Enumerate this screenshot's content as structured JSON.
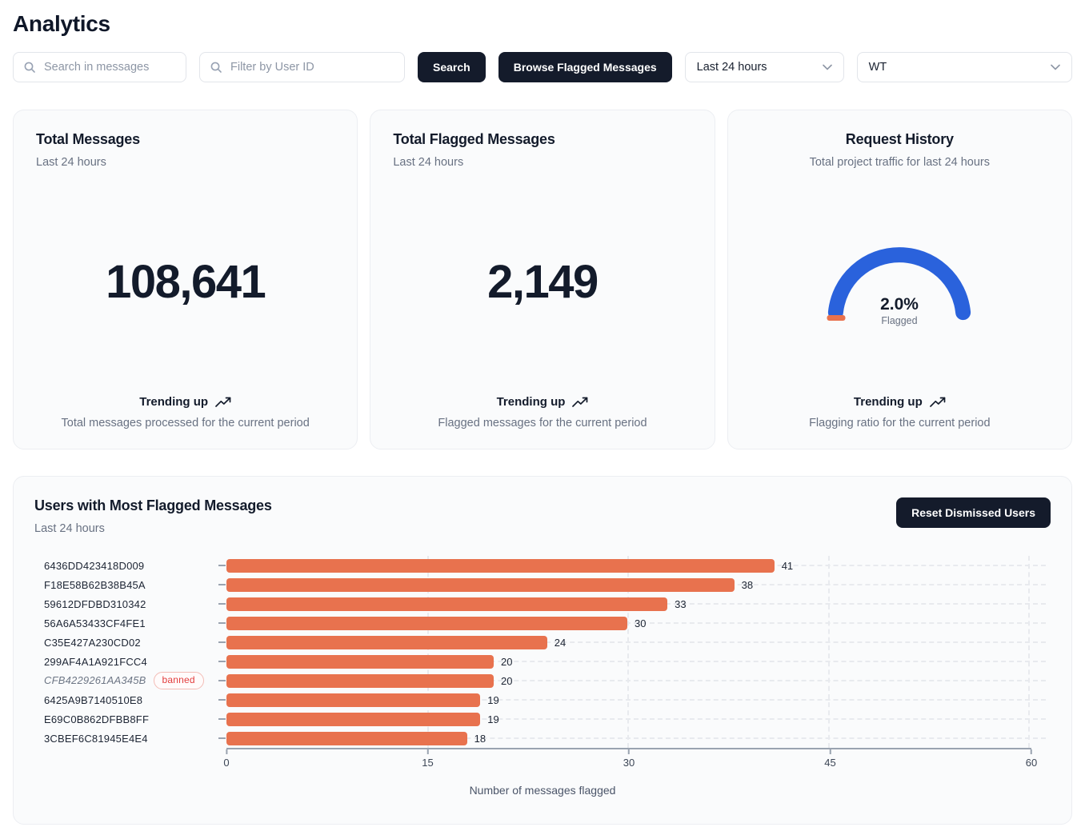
{
  "page": {
    "title": "Analytics"
  },
  "toolbar": {
    "search_placeholder": "Search in messages",
    "filter_placeholder": "Filter by User ID",
    "search_button": "Search",
    "browse_button": "Browse Flagged Messages",
    "time_range_value": "Last 24 hours",
    "project_value": "WT"
  },
  "cards": {
    "total_messages": {
      "title": "Total Messages",
      "subtitle": "Last 24 hours",
      "value": "108,641",
      "trend": "Trending up",
      "description": "Total messages processed for the current period"
    },
    "total_flagged": {
      "title": "Total Flagged Messages",
      "subtitle": "Last 24 hours",
      "value": "2,149",
      "trend": "Trending up",
      "description": "Flagged messages for the current period"
    },
    "request_history": {
      "title": "Request History",
      "subtitle": "Total project traffic for last 24 hours",
      "gauge_value": "2.0%",
      "gauge_label": "Flagged",
      "trend": "Trending up",
      "description": "Flagging ratio for the current period"
    }
  },
  "flagged_users_panel": {
    "title": "Users with Most Flagged Messages",
    "subtitle": "Last 24 hours",
    "reset_button": "Reset Dismissed Users"
  },
  "chart_data": {
    "type": "bar",
    "orientation": "horizontal",
    "title": "Users with Most Flagged Messages",
    "categories": [
      "6436DD423418D009",
      "F18E58B62B38B45A",
      "59612DFDBD310342",
      "56A6A53433CF4FE1",
      "C35E427A230CD02",
      "299AF4A1A921FCC4",
      "CFB4229261AA345B",
      "6425A9B7140510E8",
      "E69C0B862DFBB8FF",
      "3CBEF6C81945E4E4"
    ],
    "values": [
      41,
      38,
      33,
      30,
      24,
      20,
      20,
      19,
      19,
      18
    ],
    "banned_index": 6,
    "banned_badge": "banned",
    "xlabel": "Number of messages flagged",
    "xlim": [
      0,
      60
    ],
    "xticks": [
      0,
      15,
      30,
      45,
      60
    ],
    "grid": "dashed",
    "legend": "none"
  },
  "colors": {
    "bar_orange": "#e8724e",
    "gauge_blue": "#2a62dc",
    "gauge_flagged_orange": "#e8724e",
    "dark_navy": "#141b2b",
    "banned_red": "#e23d3d"
  }
}
